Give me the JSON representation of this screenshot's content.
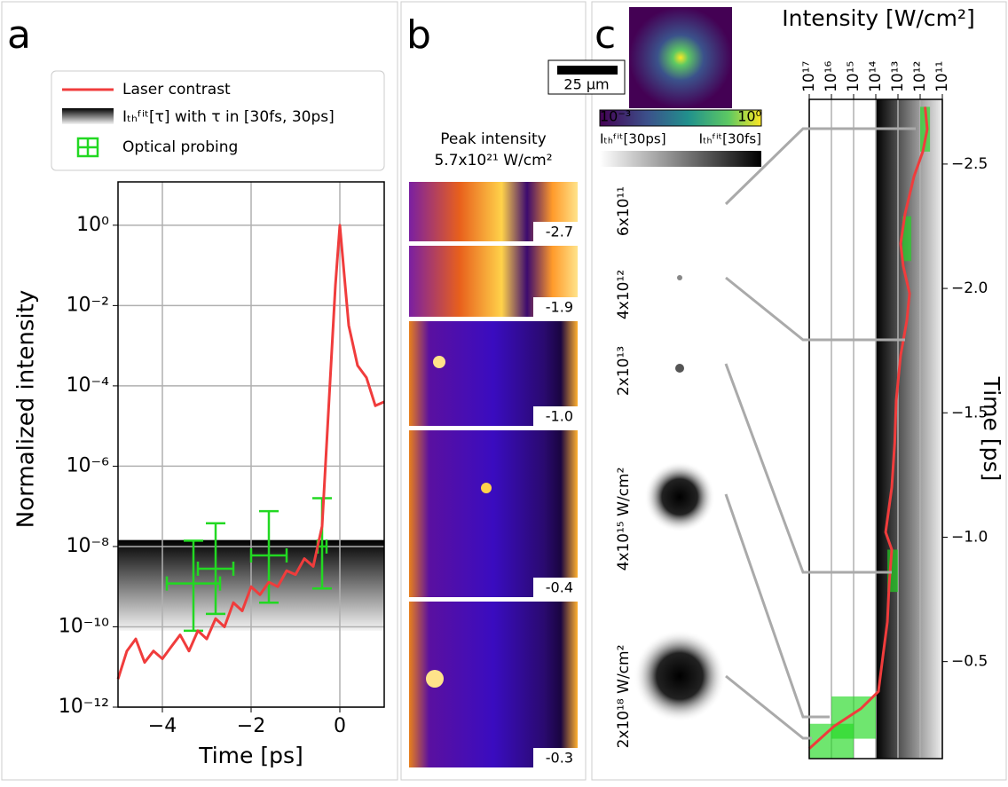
{
  "panels": [
    "a",
    "b",
    "c"
  ],
  "chart_data": [
    {
      "type": "line",
      "xlabel": "Time [ps]",
      "ylabel": "Normalized intensity",
      "xlim": [
        -5,
        1
      ],
      "ylim": [
        1e-12,
        12
      ],
      "ylog": true,
      "grid": true,
      "legend": "upper center",
      "xticks": [
        {
          "value": -4,
          "label": "−4"
        },
        {
          "value": -2,
          "label": "−2"
        },
        0
      ],
      "yticks": [
        {
          "value": 1e-12,
          "label": "10⁻¹²"
        },
        {
          "value": 1e-10,
          "label": "10⁻¹⁰"
        },
        {
          "value": 1e-08,
          "label": "10⁻⁸"
        },
        {
          "value": 1e-06,
          "label": "10⁻⁶"
        },
        {
          "value": 0.0001,
          "label": "10⁻⁴"
        },
        {
          "value": 0.01,
          "label": "10⁻²"
        },
        {
          "value": 1,
          "label": "10⁰"
        }
      ],
      "series": [
        {
          "name": "Laser contrast",
          "color": "#f03c3c",
          "x": [
            -5,
            -4.8,
            -4.6,
            -4.4,
            -4.2,
            -4,
            -3.8,
            -3.6,
            -3.4,
            -3.2,
            -3,
            -2.8,
            -2.6,
            -2.4,
            -2.2,
            -2,
            -1.8,
            -1.6,
            -1.4,
            -1.2,
            -1,
            -0.8,
            -0.6,
            -0.4,
            -0.3,
            -0.2,
            -0.1,
            0,
            0.2,
            0.4,
            0.6,
            0.8,
            1
          ],
          "values": [
            5e-12,
            2.5e-11,
            5e-11,
            1.3e-11,
            2.5e-11,
            1.6e-11,
            3.2e-11,
            6.3e-11,
            2.5e-11,
            8e-11,
            5e-11,
            1.6e-10,
            1e-10,
            4e-10,
            2.5e-10,
            1e-09,
            6.3e-10,
            1.3e-09,
            1e-09,
            2.5e-09,
            2e-09,
            5e-09,
            3.2e-09,
            3.2e-08,
            3.2e-06,
            0.00032,
            0.032,
            1,
            0.0032,
            0.00032,
            0.00016,
            3.2e-05,
            4e-05
          ]
        }
      ],
      "band": {
        "name": "Iₜₕᶠⁱᵗ[τ] with τ in [30fs, 30ps]",
        "values": [
          8e-11,
          1.45e-08
        ]
      },
      "probes": {
        "name": "Optical probing",
        "color": "#22d822",
        "x": [
          -3.3,
          -2.8,
          -1.6,
          -0.4
        ],
        "xerr": [
          0.6,
          0.4,
          0.4,
          0.1
        ],
        "values": [
          1.2e-09,
          2.8e-09,
          6e-09,
          1e-08
        ],
        "ylow": [
          8e-11,
          2.1e-10,
          4e-10,
          9e-10
        ],
        "yhigh": [
          1.4e-08,
          3.8e-08,
          7.6e-08,
          1.6e-07
        ]
      }
    },
    {
      "type": "line",
      "xlabel": "Intensity [W/cm²]",
      "ylabel": "Time [ps]",
      "xlim": [
        1e+17,
        100000000000.0
      ],
      "xlog": true,
      "ylim": [
        -2.76,
        -0.11
      ],
      "grid": "x",
      "xticks": [
        {
          "value": 1e+17,
          "label": "10¹⁷"
        },
        {
          "value": 1e+16,
          "label": "10¹⁶"
        },
        {
          "value": 1000000000000000.0,
          "label": "10¹⁵"
        },
        {
          "value": 100000000000000.0,
          "label": "10¹⁴"
        },
        {
          "value": 10000000000000.0,
          "label": "10¹³"
        },
        {
          "value": 1000000000000.0,
          "label": "10¹²"
        },
        {
          "value": 100000000000.0,
          "label": "10¹¹"
        }
      ],
      "yticks": [
        {
          "value": -2.5,
          "label": "−2.5"
        },
        {
          "value": -2.0,
          "label": "−2.0"
        },
        {
          "value": -1.5,
          "label": "−1.5"
        },
        {
          "value": -1.0,
          "label": "−1.0"
        },
        {
          "value": -0.5,
          "label": "−0.5"
        }
      ],
      "series": [
        {
          "color": "#f03c3c",
          "values": [
            600000000000.0,
            480000000000.0,
            760000000000.0,
            1900000000000.0,
            4800000000000.0,
            7600000000000.0,
            5800000000000.0,
            3000000000000.0,
            4000000000000.0,
            7600000000000.0,
            12000000000000.0,
            14000000000000.0,
            19000000000000.0,
            36000000000000.0,
            19000000000000.0,
            25000000000000.0,
            30000000000000.0,
            48000000000000.0,
            76000000000000.0,
            480000000000000.0,
            7600000000000000.0,
            1e+17
          ],
          "times": [
            -2.73,
            -2.64,
            -2.55,
            -2.45,
            -2.3,
            -2.18,
            -2.09,
            -1.98,
            -1.87,
            -1.73,
            -1.55,
            -1.38,
            -1.2,
            -1.02,
            -0.95,
            -0.81,
            -0.66,
            -0.52,
            -0.38,
            -0.31,
            -0.24,
            -0.15
          ]
        }
      ],
      "band": {
        "values": [
          100000000000000.0,
          100000000000.0
        ]
      },
      "probes": {
        "color": "#22d822",
        "boxes": [
          {
            "x": [
              1000000000000.0,
              360000000000.0
            ],
            "y": [
              -2.73,
              -2.55
            ]
          },
          {
            "x": [
              6300000000000.0,
              2500000000000.0
            ],
            "y": [
              -2.29,
              -2.11
            ]
          },
          {
            "x": [
              30000000000000.0,
              10000000000000.0
            ],
            "y": [
              -0.95,
              -0.78
            ]
          },
          {
            "x": [
              1e+16,
              100000000000000.0
            ],
            "y": [
              -0.36,
              -0.19
            ]
          },
          {
            "x": [
              1e+17,
              1000000000000000.0
            ],
            "y": [
              -0.25,
              -0.11
            ]
          }
        ]
      }
    }
  ],
  "panel_b": {
    "title": [
      "Peak intensity",
      "5.7x10²¹ W/cm²"
    ],
    "frames": [
      "-2.7",
      "-1.9",
      "-1.0",
      "-0.4",
      "-0.3"
    ]
  },
  "panel_c": {
    "scale_bar": "25 µm",
    "colorbar": [
      "10⁻³",
      "10⁰"
    ],
    "threshold_labels": [
      "Iₜₕᶠⁱᵗ[30ps]",
      "Iₜₕᶠⁱᵗ[30fs]"
    ],
    "images": [
      "6x10¹¹",
      "4x10¹²",
      "2x10¹³",
      "4x10¹⁵ W/cm²",
      "2x10¹⁸ W/cm²"
    ]
  }
}
